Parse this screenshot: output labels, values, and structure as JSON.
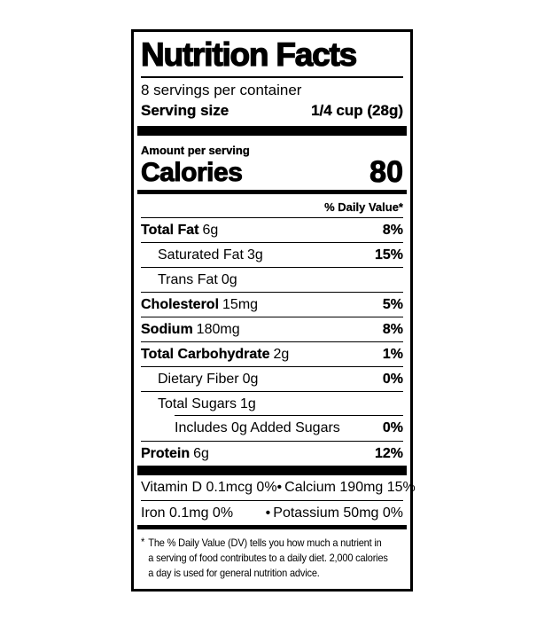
{
  "colors": {
    "ink": "#000000",
    "paper": "#ffffff"
  },
  "label": {
    "title": "Nutrition Facts",
    "servings_per_container": "8 servings per container",
    "serving_size": {
      "label": "Serving size",
      "value": "1/4 cup (28g)"
    },
    "amount_per_serving": "Amount per serving",
    "calories": {
      "label": "Calories",
      "value": "80"
    },
    "daily_value_header": "% Daily Value*",
    "rows": [
      {
        "name": "Total Fat",
        "amount": "6g",
        "dv": "8%"
      },
      {
        "name": "Saturated Fat",
        "amount": "3g",
        "dv": "15%"
      },
      {
        "name": "Trans Fat",
        "amount": "0g",
        "dv": ""
      },
      {
        "name": "Cholesterol",
        "amount": "15mg",
        "dv": "5%"
      },
      {
        "name": "Sodium",
        "amount": "180mg",
        "dv": "8%"
      },
      {
        "name": "Total Carbohydrate",
        "amount": "2g",
        "dv": "1%"
      },
      {
        "name": "Dietary Fiber",
        "amount": "0g",
        "dv": "0%"
      },
      {
        "name": "Total Sugars",
        "amount": "1g",
        "dv": ""
      },
      {
        "name": "Includes 0g Added Sugars",
        "amount": "",
        "dv": "0%"
      },
      {
        "name": "Protein",
        "amount": "6g",
        "dv": "12%"
      }
    ],
    "micros": {
      "bullet": "•",
      "rows": [
        {
          "left": "Vitamin D 0.1mcg 0%",
          "right": "Calcium 190mg 15%"
        },
        {
          "left": "Iron 0.1mg 0%",
          "right": "Potassium 50mg 0%"
        }
      ]
    },
    "footnote": {
      "asterisk": "*",
      "lines": [
        "The % Daily Value (DV) tells you how much a nutrient in",
        "a serving of food contributes to a daily diet. 2,000 calories",
        "a day is used for general nutrition advice."
      ]
    }
  }
}
